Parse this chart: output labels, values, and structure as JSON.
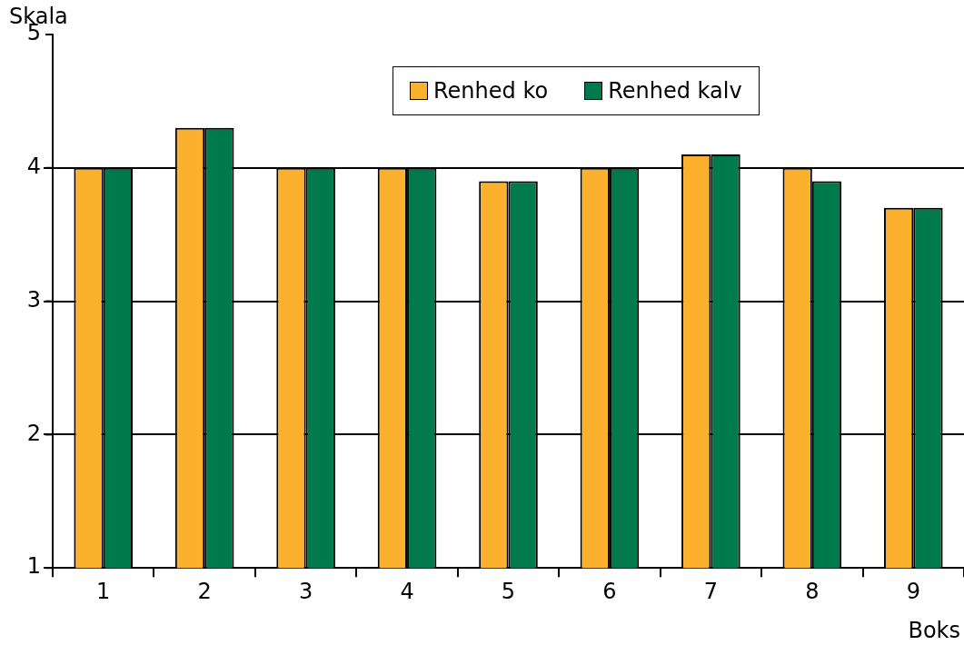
{
  "chart_data": {
    "type": "bar",
    "xlabel": "Boks",
    "ylabel": "Skala",
    "categories": [
      "1",
      "2",
      "3",
      "4",
      "5",
      "6",
      "7",
      "8",
      "9"
    ],
    "series": [
      {
        "name": "Renhed ko",
        "color": "#fbb12d",
        "values": [
          4.0,
          4.3,
          4.0,
          4.0,
          3.9,
          4.0,
          4.1,
          4.0,
          3.7
        ]
      },
      {
        "name": "Renhed kalv",
        "color": "#007a4c",
        "values": [
          4.0,
          4.3,
          4.0,
          4.0,
          3.9,
          4.0,
          4.1,
          3.9,
          3.7
        ]
      }
    ],
    "ylim": [
      1,
      5
    ],
    "yticks": [
      1,
      2,
      3,
      4,
      5
    ],
    "grid": "y",
    "legend": "top right"
  }
}
